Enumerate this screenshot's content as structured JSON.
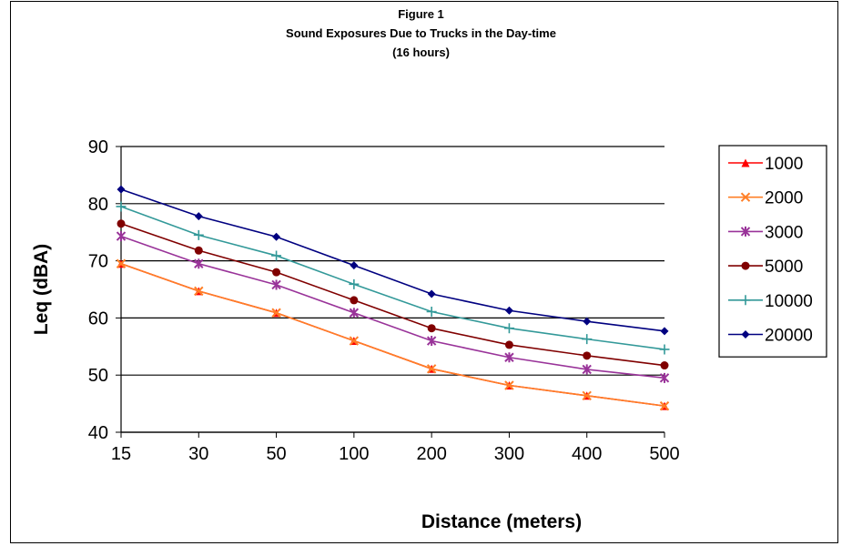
{
  "chart_data": {
    "type": "line",
    "title": "Figure 1",
    "subtitle": "Sound Exposures Due to Trucks in the Day-time",
    "subtitle2": "(16 hours)",
    "xlabel": "Distance (meters)",
    "ylabel": "Leq (dBA)",
    "categories": [
      "15",
      "30",
      "50",
      "100",
      "200",
      "300",
      "400",
      "500"
    ],
    "ylim": [
      40,
      90
    ],
    "yticks": [
      40,
      50,
      60,
      70,
      80,
      90
    ],
    "grid": true,
    "legend_position": "right",
    "series": [
      {
        "name": "1000",
        "color": "#FF0000",
        "marker": "triangle",
        "values": [
          69.5,
          64.7,
          60.9,
          56.0,
          51.1,
          48.2,
          46.4,
          44.6
        ]
      },
      {
        "name": "2000",
        "color": "#FF7F27",
        "marker": "x",
        "values": [
          69.5,
          64.7,
          60.9,
          56.0,
          51.1,
          48.2,
          46.4,
          44.6
        ]
      },
      {
        "name": "3000",
        "color": "#993399",
        "marker": "star",
        "values": [
          74.3,
          69.5,
          65.8,
          60.9,
          56.0,
          53.1,
          51.0,
          49.5
        ]
      },
      {
        "name": "5000",
        "color": "#800000",
        "marker": "circle",
        "values": [
          76.5,
          71.8,
          68.0,
          63.1,
          58.2,
          55.3,
          53.4,
          51.7
        ]
      },
      {
        "name": "10000",
        "color": "#339999",
        "marker": "plus",
        "values": [
          79.5,
          74.5,
          70.9,
          65.9,
          61.1,
          58.2,
          56.3,
          54.5
        ]
      },
      {
        "name": "20000",
        "color": "#000080",
        "marker": "diamond",
        "values": [
          82.5,
          77.8,
          74.2,
          69.2,
          64.2,
          61.3,
          59.4,
          57.7
        ]
      }
    ]
  }
}
